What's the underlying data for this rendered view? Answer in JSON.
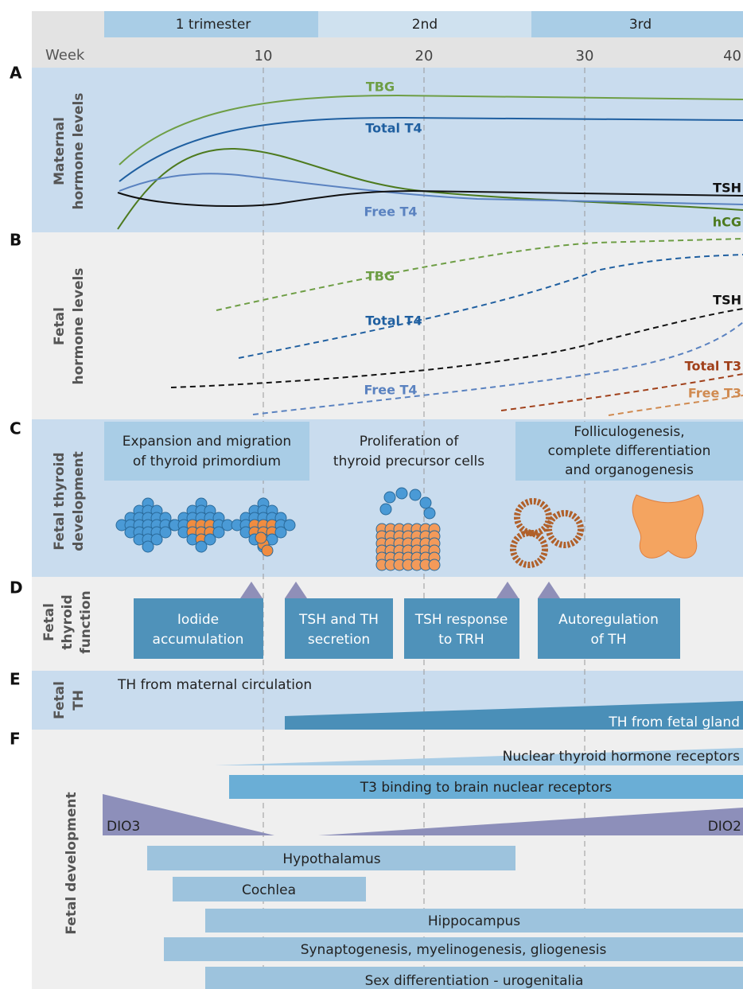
{
  "header": {
    "trimesters": [
      "1 trimester",
      "2nd",
      "3rd"
    ],
    "week_label": "Week",
    "week_ticks": [
      10,
      20,
      30,
      40
    ]
  },
  "panels": {
    "A": {
      "letter": "A",
      "label": [
        "Maternal",
        "hormone levels"
      ],
      "curves": [
        "TBG",
        "Total T4",
        "TSH",
        "Free T4",
        "hCG"
      ]
    },
    "B": {
      "letter": "B",
      "label": [
        "Fetal",
        "hormone levels"
      ],
      "curves": [
        "TBG",
        "Total T4",
        "TSH",
        "Total T3",
        "Free T4",
        "Free T3"
      ]
    },
    "C": {
      "letter": "C",
      "label": [
        "Fetal thyroid",
        "development"
      ],
      "boxes": [
        [
          "Expansion and migration",
          "of thyroid primordium"
        ],
        [
          "Proliferation of",
          "thyroid precursor cells"
        ],
        [
          "Folliculogenesis,",
          "complete differentiation",
          "and organogenesis"
        ]
      ]
    },
    "D": {
      "letter": "D",
      "label": [
        "Fetal",
        "thyroid",
        "function"
      ],
      "boxes": [
        [
          "Iodide",
          "accumulation"
        ],
        [
          "TSH and TH",
          "secretion"
        ],
        [
          "TSH response",
          "to TRH"
        ],
        [
          "Autoregulation",
          "of TH"
        ]
      ]
    },
    "E": {
      "letter": "E",
      "label": [
        "Fetal",
        "TH"
      ],
      "texts": [
        "TH from maternal circulation",
        "TH from fetal gland"
      ]
    },
    "F": {
      "letter": "F",
      "label": [
        "Fetal development"
      ],
      "bars": [
        "Nuclear thyroid hormone receptors",
        "T3 binding to brain nuclear receptors",
        "DIO3",
        "DIO2",
        "Hypothalamus",
        "Cochlea",
        "Hippocampus",
        "Synaptogenesis, myelinogenesis, gliogenesis",
        "Sex differentiation - urogenitalia"
      ]
    }
  }
}
